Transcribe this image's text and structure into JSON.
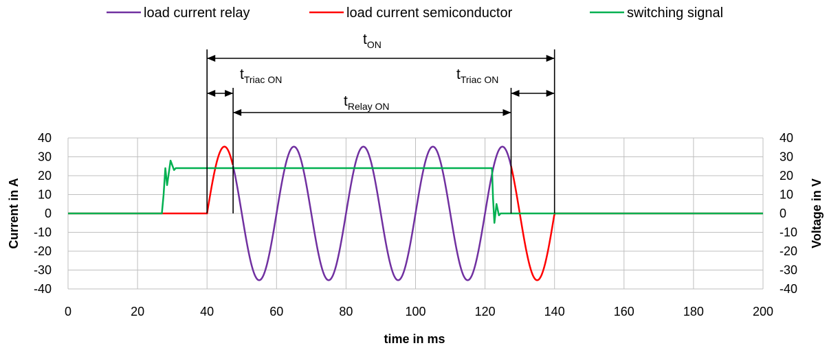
{
  "chart_data": {
    "type": "line",
    "xlabel": "time in ms",
    "ylabel_left": "Current in A",
    "ylabel_right": "Voltage in V",
    "xlim": [
      0,
      200
    ],
    "xticks": [
      0,
      20,
      40,
      60,
      80,
      100,
      120,
      140,
      160,
      180,
      200
    ],
    "ylim_left": [
      -40,
      40
    ],
    "ylim_right": [
      -40,
      40
    ],
    "yticks": [
      40,
      30,
      20,
      10,
      0,
      -10,
      -20,
      -30,
      -40
    ],
    "grid": true,
    "legend_position": "top",
    "series": [
      {
        "name": "load current relay",
        "color": "#7030a0",
        "axis": "left",
        "description": "sine 50 Hz, amplitude 35.4 A",
        "x_range": [
          47.5,
          127.5
        ]
      },
      {
        "name": "load current semiconductor",
        "color": "#ff0000",
        "axis": "left",
        "description": "sine 50 Hz, amplitude 35.4 A, zero otherwise",
        "x_ranges": [
          [
            0,
            47.5
          ],
          [
            127.5,
            200
          ]
        ]
      },
      {
        "name": "switching signal",
        "color": "#00b050",
        "axis": "right",
        "points": [
          [
            0,
            0
          ],
          [
            27,
            0
          ],
          [
            27.5,
            10
          ],
          [
            28,
            24
          ],
          [
            28.5,
            15
          ],
          [
            29.5,
            28
          ],
          [
            30.5,
            23
          ],
          [
            31,
            24
          ],
          [
            122,
            24
          ],
          [
            122.3,
            8
          ],
          [
            122.7,
            -5
          ],
          [
            123.3,
            5
          ],
          [
            124,
            -1
          ],
          [
            124.5,
            0
          ],
          [
            200,
            0
          ]
        ]
      }
    ],
    "annotations": [
      {
        "label": "t",
        "sub": "ON",
        "x_from": 40,
        "x_to": 140
      },
      {
        "label": "t",
        "sub": "Triac ON",
        "x_from": 40,
        "x_to": 47.5
      },
      {
        "label": "t",
        "sub": "Relay ON",
        "x_from": 47.5,
        "x_to": 127.5
      },
      {
        "label": "t",
        "sub": "Triac ON",
        "x_from": 127.5,
        "x_to": 140
      }
    ]
  }
}
